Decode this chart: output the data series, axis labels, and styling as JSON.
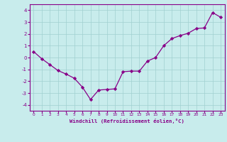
{
  "x": [
    0,
    1,
    2,
    3,
    4,
    5,
    6,
    7,
    8,
    9,
    10,
    11,
    12,
    13,
    14,
    15,
    16,
    17,
    18,
    19,
    20,
    21,
    22,
    23
  ],
  "y": [
    0.5,
    -0.1,
    -0.6,
    -1.1,
    -1.4,
    -1.75,
    -2.5,
    -3.55,
    -2.75,
    -2.7,
    -2.65,
    -1.2,
    -1.15,
    -1.15,
    -0.3,
    0.0,
    1.0,
    1.6,
    1.85,
    2.05,
    2.45,
    2.5,
    3.8,
    3.4
  ],
  "line_color": "#880088",
  "marker": "D",
  "marker_size": 2.2,
  "bg_color": "#c8ecec",
  "grid_color": "#a0d0d0",
  "xlabel": "Windchill (Refroidissement éolien,°C)",
  "xlim": [
    -0.5,
    23.5
  ],
  "ylim": [
    -4.5,
    4.5
  ],
  "yticks": [
    -4,
    -3,
    -2,
    -1,
    0,
    1,
    2,
    3,
    4
  ],
  "xticks": [
    0,
    1,
    2,
    3,
    4,
    5,
    6,
    7,
    8,
    9,
    10,
    11,
    12,
    13,
    14,
    15,
    16,
    17,
    18,
    19,
    20,
    21,
    22,
    23
  ],
  "tick_label_color": "#880088",
  "xlabel_color": "#880088",
  "spine_color": "#880088"
}
